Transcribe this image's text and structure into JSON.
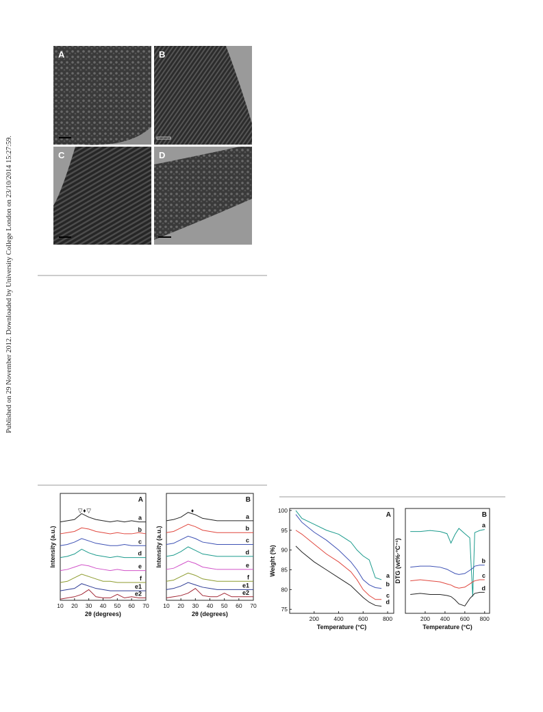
{
  "side_text": "Published on 29 November 2012. Downloaded by University College London on 23/10/2014 15:27:59.",
  "figure1": {
    "panels": [
      "A",
      "B",
      "C",
      "D"
    ]
  },
  "chart_data": [
    {
      "type": "line",
      "panel_label": "A",
      "xlabel": "2θ (degrees)",
      "ylabel": "Intensity (a.u.)",
      "x": [
        10,
        15,
        20,
        25,
        30,
        35,
        40,
        45,
        50,
        55,
        60,
        65,
        70
      ],
      "xlim": [
        10,
        70
      ],
      "xticks": [
        10,
        20,
        30,
        40,
        50,
        60,
        70
      ],
      "ylim": [
        0,
        9
      ],
      "annotations": [
        {
          "text": "▽",
          "x": 24
        },
        {
          "text": "♦",
          "x": 27
        },
        {
          "text": "▽",
          "x": 30
        }
      ],
      "series": [
        {
          "name": "a",
          "color": "#222222",
          "values": [
            6.6,
            6.7,
            6.8,
            7.3,
            7.0,
            6.8,
            6.7,
            6.6,
            6.7,
            6.6,
            6.7,
            6.6,
            6.6
          ]
        },
        {
          "name": "b",
          "color": "#e0453c",
          "values": [
            5.6,
            5.7,
            5.8,
            6.1,
            6.0,
            5.8,
            5.7,
            5.6,
            5.7,
            5.6,
            5.6,
            5.7,
            5.6
          ]
        },
        {
          "name": "c",
          "color": "#3c50b4",
          "values": [
            4.6,
            4.7,
            4.9,
            5.2,
            5.0,
            4.8,
            4.7,
            4.6,
            4.6,
            4.7,
            4.6,
            4.6,
            4.6
          ]
        },
        {
          "name": "d",
          "color": "#1a9a8c",
          "values": [
            3.6,
            3.7,
            3.9,
            4.3,
            4.0,
            3.8,
            3.7,
            3.6,
            3.7,
            3.6,
            3.6,
            3.6,
            3.6
          ]
        },
        {
          "name": "e",
          "color": "#d050c8",
          "values": [
            2.5,
            2.6,
            2.8,
            3.0,
            2.9,
            2.7,
            2.6,
            2.5,
            2.6,
            2.5,
            2.5,
            2.5,
            2.5
          ]
        },
        {
          "name": "f",
          "color": "#8c9a2c",
          "values": [
            1.5,
            1.6,
            1.9,
            2.2,
            2.0,
            1.8,
            1.6,
            1.6,
            1.5,
            1.5,
            1.5,
            1.5,
            1.5
          ]
        },
        {
          "name": "e1",
          "color": "#2c3a94",
          "values": [
            0.8,
            0.9,
            1.0,
            1.4,
            1.2,
            1.0,
            0.9,
            0.8,
            0.8,
            0.8,
            0.8,
            0.8,
            0.8
          ]
        },
        {
          "name": "e2",
          "color": "#a02432",
          "values": [
            0.1,
            0.2,
            0.3,
            0.5,
            0.9,
            0.3,
            0.2,
            0.2,
            0.5,
            0.2,
            0.3,
            0.2,
            0.2
          ]
        }
      ]
    },
    {
      "type": "line",
      "panel_label": "B",
      "xlabel": "2θ (degrees)",
      "ylabel": "Intensity (a.u.)",
      "x": [
        10,
        15,
        20,
        25,
        30,
        35,
        40,
        45,
        50,
        55,
        60,
        65,
        70
      ],
      "xlim": [
        10,
        70
      ],
      "xticks": [
        10,
        20,
        30,
        40,
        50,
        60,
        70
      ],
      "ylim": [
        0,
        9
      ],
      "annotations": [
        {
          "text": "♦",
          "x": 28
        }
      ],
      "series": [
        {
          "name": "a",
          "color": "#222222",
          "values": [
            6.7,
            6.8,
            7.0,
            7.4,
            7.2,
            6.9,
            6.8,
            6.7,
            6.7,
            6.7,
            6.7,
            6.7,
            6.7
          ]
        },
        {
          "name": "b",
          "color": "#e0453c",
          "values": [
            5.7,
            5.8,
            6.1,
            6.4,
            6.2,
            5.9,
            5.8,
            5.7,
            5.7,
            5.7,
            5.7,
            5.7,
            5.7
          ]
        },
        {
          "name": "c",
          "color": "#3c50b4",
          "values": [
            4.7,
            4.8,
            5.1,
            5.4,
            5.2,
            4.9,
            4.8,
            4.7,
            4.7,
            4.7,
            4.7,
            4.7,
            4.7
          ]
        },
        {
          "name": "d",
          "color": "#1a9a8c",
          "values": [
            3.7,
            3.8,
            4.1,
            4.5,
            4.2,
            3.9,
            3.8,
            3.7,
            3.7,
            3.7,
            3.7,
            3.7,
            3.7
          ]
        },
        {
          "name": "e",
          "color": "#d050c8",
          "values": [
            2.6,
            2.7,
            3.0,
            3.3,
            3.1,
            2.8,
            2.7,
            2.6,
            2.6,
            2.6,
            2.6,
            2.6,
            2.6
          ]
        },
        {
          "name": "f",
          "color": "#8c9a2c",
          "values": [
            1.6,
            1.7,
            2.0,
            2.3,
            2.1,
            1.8,
            1.7,
            1.6,
            1.6,
            1.6,
            1.6,
            1.6,
            1.6
          ]
        },
        {
          "name": "e1",
          "color": "#2c3a94",
          "values": [
            0.9,
            1.0,
            1.2,
            1.5,
            1.3,
            1.1,
            1.0,
            0.9,
            0.9,
            0.9,
            0.9,
            0.9,
            0.9
          ]
        },
        {
          "name": "e2",
          "color": "#a02432",
          "values": [
            0.2,
            0.3,
            0.4,
            0.6,
            1.0,
            0.4,
            0.3,
            0.3,
            0.6,
            0.3,
            0.3,
            0.3,
            0.3
          ]
        }
      ]
    },
    {
      "type": "line",
      "panel_label": "A",
      "xlabel": "Temperature (°C)",
      "ylabel": "Weight (%)",
      "x": [
        50,
        100,
        200,
        300,
        400,
        500,
        550,
        600,
        650,
        700,
        750
      ],
      "xlim": [
        0,
        850
      ],
      "xticks": [
        200,
        400,
        600,
        800
      ],
      "ylim": [
        74,
        100.5
      ],
      "yticks": [
        75,
        80,
        85,
        90,
        95,
        100
      ],
      "series": [
        {
          "name": "a",
          "color": "#1a9a8c",
          "values": [
            100,
            98,
            96.5,
            95,
            94,
            92,
            90,
            88.5,
            87.5,
            83,
            82.5
          ]
        },
        {
          "name": "b",
          "color": "#3c50b4",
          "values": [
            99,
            97,
            94.5,
            92.5,
            90,
            87,
            85,
            82.5,
            81.2,
            80.5,
            80.3
          ]
        },
        {
          "name": "c",
          "color": "#e0453c",
          "values": [
            95,
            94,
            91.5,
            89,
            87,
            84.5,
            82.5,
            80,
            78.5,
            77.5,
            77.5
          ]
        },
        {
          "name": "d",
          "color": "#222222",
          "values": [
            91,
            89.5,
            87,
            85,
            83,
            81,
            79.5,
            78,
            76.8,
            76,
            75.8
          ]
        }
      ]
    },
    {
      "type": "line",
      "panel_label": "B",
      "xlabel": "Temperature (°C)",
      "ylabel": "DTG (wt%·°C⁻¹)",
      "x": [
        50,
        150,
        250,
        350,
        420,
        460,
        500,
        540,
        600,
        650,
        680,
        700,
        750,
        800
      ],
      "xlim": [
        0,
        850
      ],
      "xticks": [
        200,
        400,
        600,
        800
      ],
      "ylim": [
        0,
        10
      ],
      "series": [
        {
          "name": "a",
          "color": "#1a9a8c",
          "values": [
            7.8,
            7.8,
            7.9,
            7.8,
            7.6,
            6.7,
            7.5,
            8.1,
            7.6,
            7.2,
            1.6,
            7.7,
            7.9,
            8.0
          ]
        },
        {
          "name": "b",
          "color": "#3c50b4",
          "values": [
            4.4,
            4.5,
            4.5,
            4.4,
            4.2,
            4.0,
            3.8,
            3.7,
            3.8,
            4.1,
            4.3,
            4.5,
            4.6,
            4.6
          ]
        },
        {
          "name": "c",
          "color": "#e0453c",
          "values": [
            3.1,
            3.2,
            3.1,
            3.0,
            2.8,
            2.7,
            2.5,
            2.4,
            2.5,
            2.8,
            3.0,
            3.1,
            3.2,
            3.2
          ]
        },
        {
          "name": "d",
          "color": "#222222",
          "values": [
            1.8,
            1.9,
            1.8,
            1.8,
            1.7,
            1.6,
            1.3,
            0.9,
            0.7,
            1.4,
            1.7,
            1.9,
            2.0,
            2.0
          ]
        }
      ]
    }
  ]
}
